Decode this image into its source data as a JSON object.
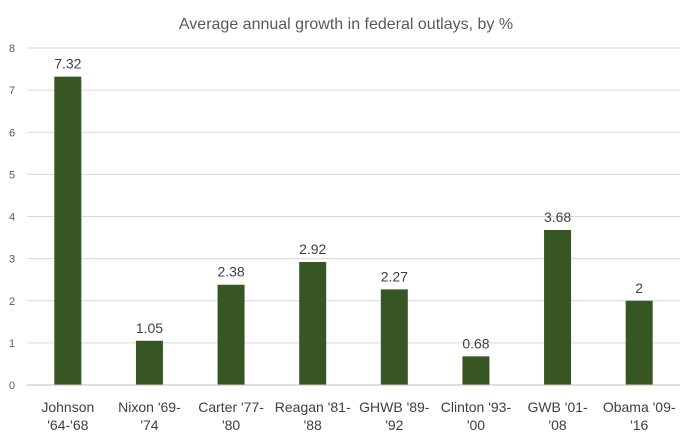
{
  "chart_data": {
    "type": "bar",
    "title": "Average annual growth in federal outlays, by %",
    "xlabel": "",
    "ylabel": "",
    "ylim": [
      0,
      8
    ],
    "yticks": [
      0,
      1,
      2,
      3,
      4,
      5,
      6,
      7,
      8
    ],
    "grid": true,
    "categories": [
      [
        "Johnson",
        "'64-'68"
      ],
      [
        "Nixon '69-",
        "'74"
      ],
      [
        "Carter '77-",
        "'80"
      ],
      [
        "Reagan '81-",
        "'88"
      ],
      [
        "GHWB '89-",
        "'92"
      ],
      [
        "Clinton '93-",
        "'00"
      ],
      [
        "GWB '01-",
        "'08"
      ],
      [
        "Obama '09-",
        "'16"
      ]
    ],
    "values": [
      7.32,
      1.05,
      2.38,
      2.92,
      2.27,
      0.68,
      3.68,
      2
    ],
    "data_labels": [
      "7.32",
      "1.05",
      "2.38",
      "2.92",
      "2.27",
      "0.68",
      "3.68",
      "2"
    ],
    "bar_color": "#375623"
  }
}
